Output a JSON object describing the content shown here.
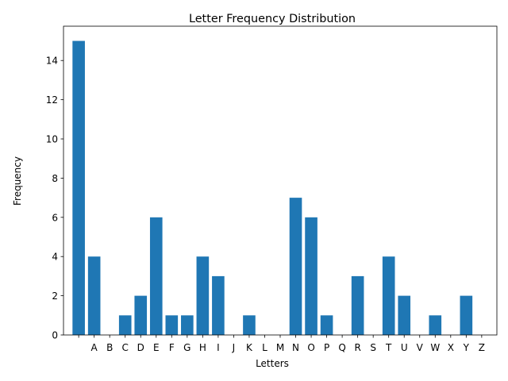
{
  "chart_data": {
    "type": "bar",
    "title": "Letter Frequency Distribution",
    "xlabel": "Letters",
    "ylabel": "Frequency",
    "categories": [
      " ",
      "A",
      "B",
      "C",
      "D",
      "E",
      "F",
      "G",
      "H",
      "I",
      "J",
      "K",
      "L",
      "M",
      "N",
      "O",
      "P",
      "Q",
      "R",
      "S",
      "T",
      "U",
      "V",
      "W",
      "X",
      "Y",
      "Z"
    ],
    "values": [
      15,
      4,
      0,
      1,
      2,
      6,
      1,
      1,
      4,
      3,
      0,
      1,
      0,
      0,
      7,
      6,
      1,
      0,
      3,
      0,
      4,
      2,
      0,
      1,
      0,
      2,
      0
    ],
    "ylim": [
      0,
      15.75
    ],
    "yticks": [
      0,
      2,
      4,
      6,
      8,
      10,
      12,
      14
    ],
    "grid": false,
    "legend": "none",
    "bar_color": "#1f77b4"
  }
}
